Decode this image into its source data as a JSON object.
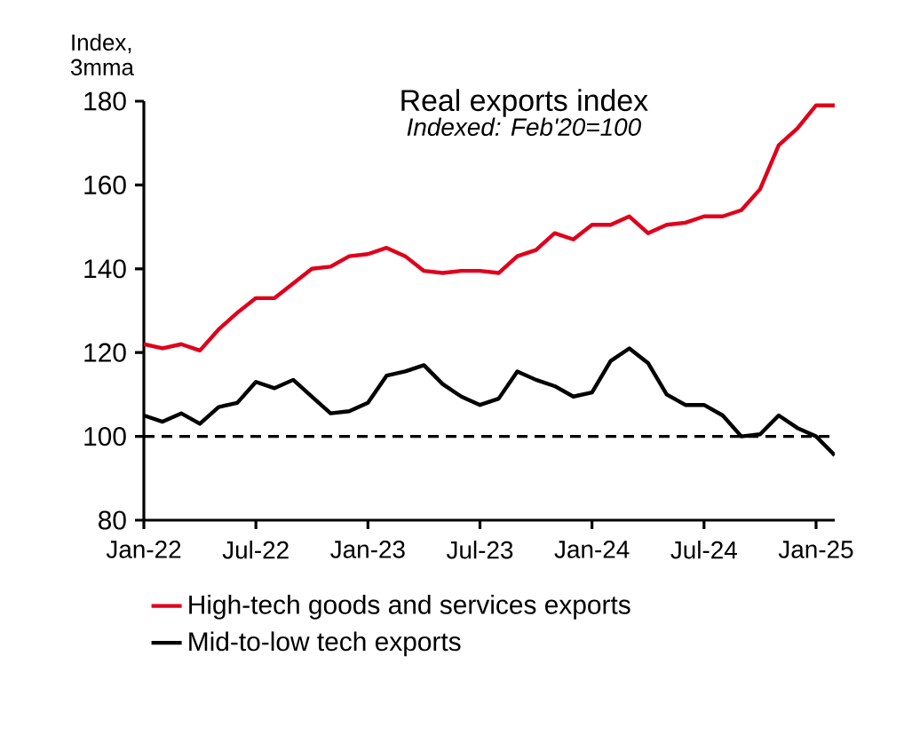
{
  "chart_data": {
    "type": "line",
    "title": "Real exports index",
    "subtitle": "*Indexed: Feb'20=100*",
    "ylabel": "Index, 3mma",
    "x": [
      "2022-01",
      "2022-02",
      "2022-03",
      "2022-04",
      "2022-05",
      "2022-06",
      "2022-07",
      "2022-08",
      "2022-09",
      "2022-10",
      "2022-11",
      "2022-12",
      "2023-01",
      "2023-02",
      "2023-03",
      "2023-04",
      "2023-05",
      "2023-06",
      "2023-07",
      "2023-08",
      "2023-09",
      "2023-10",
      "2023-11",
      "2023-12",
      "2024-01",
      "2024-02",
      "2024-03",
      "2024-04",
      "2024-05",
      "2024-06",
      "2024-07",
      "2024-08",
      "2024-09",
      "2024-10",
      "2024-11",
      "2024-12",
      "2025-01",
      "2025-02"
    ],
    "series": [
      {
        "name": "High-tech goods and services exports",
        "color": "#e0001b",
        "values": [
          122,
          121,
          122,
          120.5,
          125.5,
          129.5,
          133,
          133,
          136.5,
          140,
          140.5,
          143,
          143.5,
          145,
          143,
          139.5,
          139,
          139.5,
          139.5,
          139,
          143,
          144.5,
          148.5,
          147,
          150.5,
          150.5,
          152.5,
          148.5,
          150.5,
          151,
          152.5,
          152.5,
          154,
          159,
          169.5,
          173.5,
          179,
          179
        ]
      },
      {
        "name": "Mid-to-low tech exports",
        "color": "#000000",
        "values": [
          105,
          103.5,
          105.5,
          103,
          107,
          108,
          113,
          111.5,
          113.5,
          109.5,
          105.5,
          106,
          108,
          114.5,
          115.5,
          117,
          112.5,
          109.5,
          107.5,
          109,
          115.5,
          113.5,
          112,
          109.5,
          110.5,
          118,
          121,
          117.5,
          110,
          107.5,
          107.5,
          105,
          100,
          100.5,
          105,
          102,
          100,
          95.5
        ]
      }
    ],
    "xlim": [
      "2022-01",
      "2025-02"
    ],
    "xticks": [
      {
        "value": "2022-01",
        "label": "Jan-22"
      },
      {
        "value": "2022-07",
        "label": "Jul-22"
      },
      {
        "value": "2023-01",
        "label": "Jan-23"
      },
      {
        "value": "2023-07",
        "label": "Jul-23"
      },
      {
        "value": "2024-01",
        "label": "Jan-24"
      },
      {
        "value": "2024-07",
        "label": "Jul-24"
      },
      {
        "value": "2025-01",
        "label": "Jan-25"
      }
    ],
    "ylim": [
      80,
      180
    ],
    "yticks": [
      80,
      100,
      120,
      140,
      160,
      180
    ],
    "ref_lines": [
      {
        "axis": "y",
        "value": 100,
        "color": "#000000",
        "line_style": "dashed"
      }
    ],
    "grid": false,
    "legend": "bottom",
    "marker": "none",
    "line_style": "solid"
  }
}
